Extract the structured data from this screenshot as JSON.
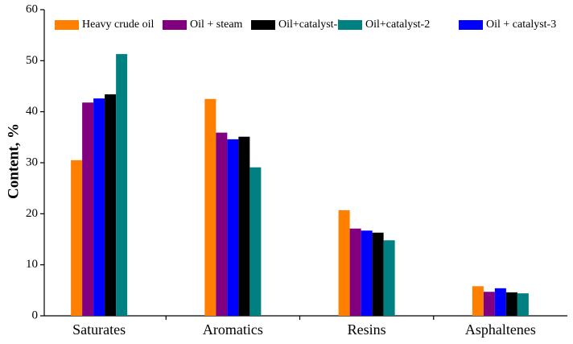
{
  "chart_data": {
    "type": "bar",
    "y_label": "Content, %",
    "categories": [
      "Saturates",
      "Aromatics",
      "Resins",
      "Asphaltenes"
    ],
    "series": [
      {
        "name": "Heavy crude oil",
        "color": "#ff8000",
        "values": [
          30.5,
          42.5,
          20.7,
          5.8
        ]
      },
      {
        "name": "Oil + steam",
        "color": "#800080",
        "values": [
          41.8,
          35.9,
          17.1,
          4.7
        ]
      },
      {
        "name": "Oil + catalyst-3",
        "color": "#0000ff",
        "values": [
          42.6,
          34.6,
          16.7,
          5.4
        ]
      },
      {
        "name": "Oil+catalyst-l",
        "color": "#000000",
        "values": [
          43.4,
          35.1,
          16.3,
          4.6
        ]
      },
      {
        "name": "Oil+catalyst-2",
        "color": "#008080",
        "values": [
          51.3,
          29.1,
          14.8,
          4.4
        ]
      }
    ],
    "ylim": [
      0,
      60
    ],
    "yticks": [
      0,
      10,
      20,
      30,
      40,
      50,
      60
    ]
  }
}
